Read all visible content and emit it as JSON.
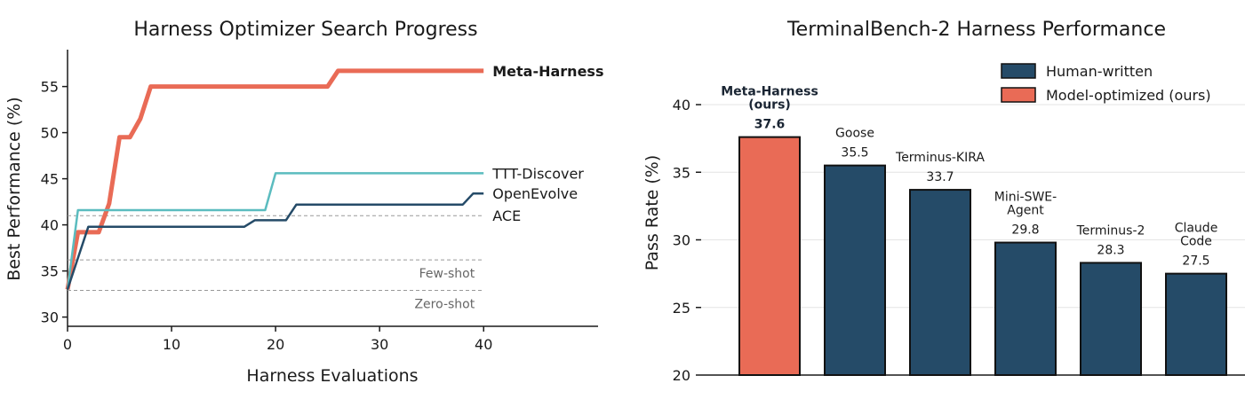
{
  "colors": {
    "meta": "#e96b56",
    "ttt": "#5bbcbf",
    "openevolve": "#254b68",
    "ace": "#4d4d4d",
    "human": "#254b68",
    "model": "#e96b56",
    "ref": "#999999"
  },
  "chart_data": [
    {
      "type": "line",
      "title": "Harness Optimizer Search Progress",
      "xlabel": "Harness Evaluations",
      "ylabel": "Best Performance (%)",
      "xlim": [
        0,
        51
      ],
      "ylim": [
        29,
        59
      ],
      "xticks": [
        0,
        10,
        20,
        30,
        40
      ],
      "yticks": [
        30,
        35,
        40,
        45,
        50,
        55
      ],
      "grid": false,
      "series": [
        {
          "name": "Meta-Harness",
          "color_key": "meta",
          "bold": true,
          "points": [
            [
              0,
              33
            ],
            [
              1,
              39.2
            ],
            [
              2,
              39.2
            ],
            [
              3,
              39.2
            ],
            [
              4,
              42.3
            ],
            [
              5,
              49.5
            ],
            [
              6,
              49.5
            ],
            [
              7,
              51.5
            ],
            [
              8,
              55
            ],
            [
              25,
              55
            ],
            [
              26,
              56.7
            ],
            [
              40,
              56.7
            ]
          ]
        },
        {
          "name": "TTT-Discover",
          "color_key": "ttt",
          "bold": false,
          "points": [
            [
              0,
              33
            ],
            [
              1,
              41.6
            ],
            [
              19,
              41.6
            ],
            [
              20,
              45.6
            ],
            [
              40,
              45.6
            ]
          ]
        },
        {
          "name": "OpenEvolve",
          "color_key": "openevolve",
          "bold": false,
          "points": [
            [
              0,
              33
            ],
            [
              2,
              39.8
            ],
            [
              17,
              39.8
            ],
            [
              18,
              40.5
            ],
            [
              21,
              40.5
            ],
            [
              22,
              42.2
            ],
            [
              38,
              42.2
            ],
            [
              39,
              43.4
            ],
            [
              40,
              43.4
            ]
          ]
        }
      ],
      "reference_lines": [
        {
          "name": "ACE",
          "y": 41,
          "label_position": "right"
        },
        {
          "name": "Few-shot",
          "y": 36.2,
          "label_position": "below-right"
        },
        {
          "name": "Zero-shot",
          "y": 32.9,
          "label_position": "below-right"
        }
      ]
    },
    {
      "type": "bar",
      "title": "TerminalBench-2 Harness Performance",
      "ylabel": "Pass Rate (%)",
      "ylim": [
        20,
        44
      ],
      "yticks": [
        20,
        25,
        30,
        35,
        40
      ],
      "grid": "horizontal",
      "legend": {
        "placement": "top-right",
        "entries": [
          {
            "label": "Human-written",
            "color_key": "human"
          },
          {
            "label": "Model-optimized (ours)",
            "color_key": "model"
          }
        ]
      },
      "bars": [
        {
          "name": "Meta-Harness\n(ours)",
          "value": 37.6,
          "group": "model",
          "bold": true
        },
        {
          "name": "Goose",
          "value": 35.5,
          "group": "human",
          "bold": false
        },
        {
          "name": "Terminus-KIRA",
          "value": 33.7,
          "group": "human",
          "bold": false
        },
        {
          "name": "Mini-SWE-\nAgent",
          "value": 29.8,
          "group": "human",
          "bold": false
        },
        {
          "name": "Terminus-2",
          "value": 28.3,
          "group": "human",
          "bold": false
        },
        {
          "name": "Claude\nCode",
          "value": 27.5,
          "group": "human",
          "bold": false
        }
      ]
    }
  ]
}
